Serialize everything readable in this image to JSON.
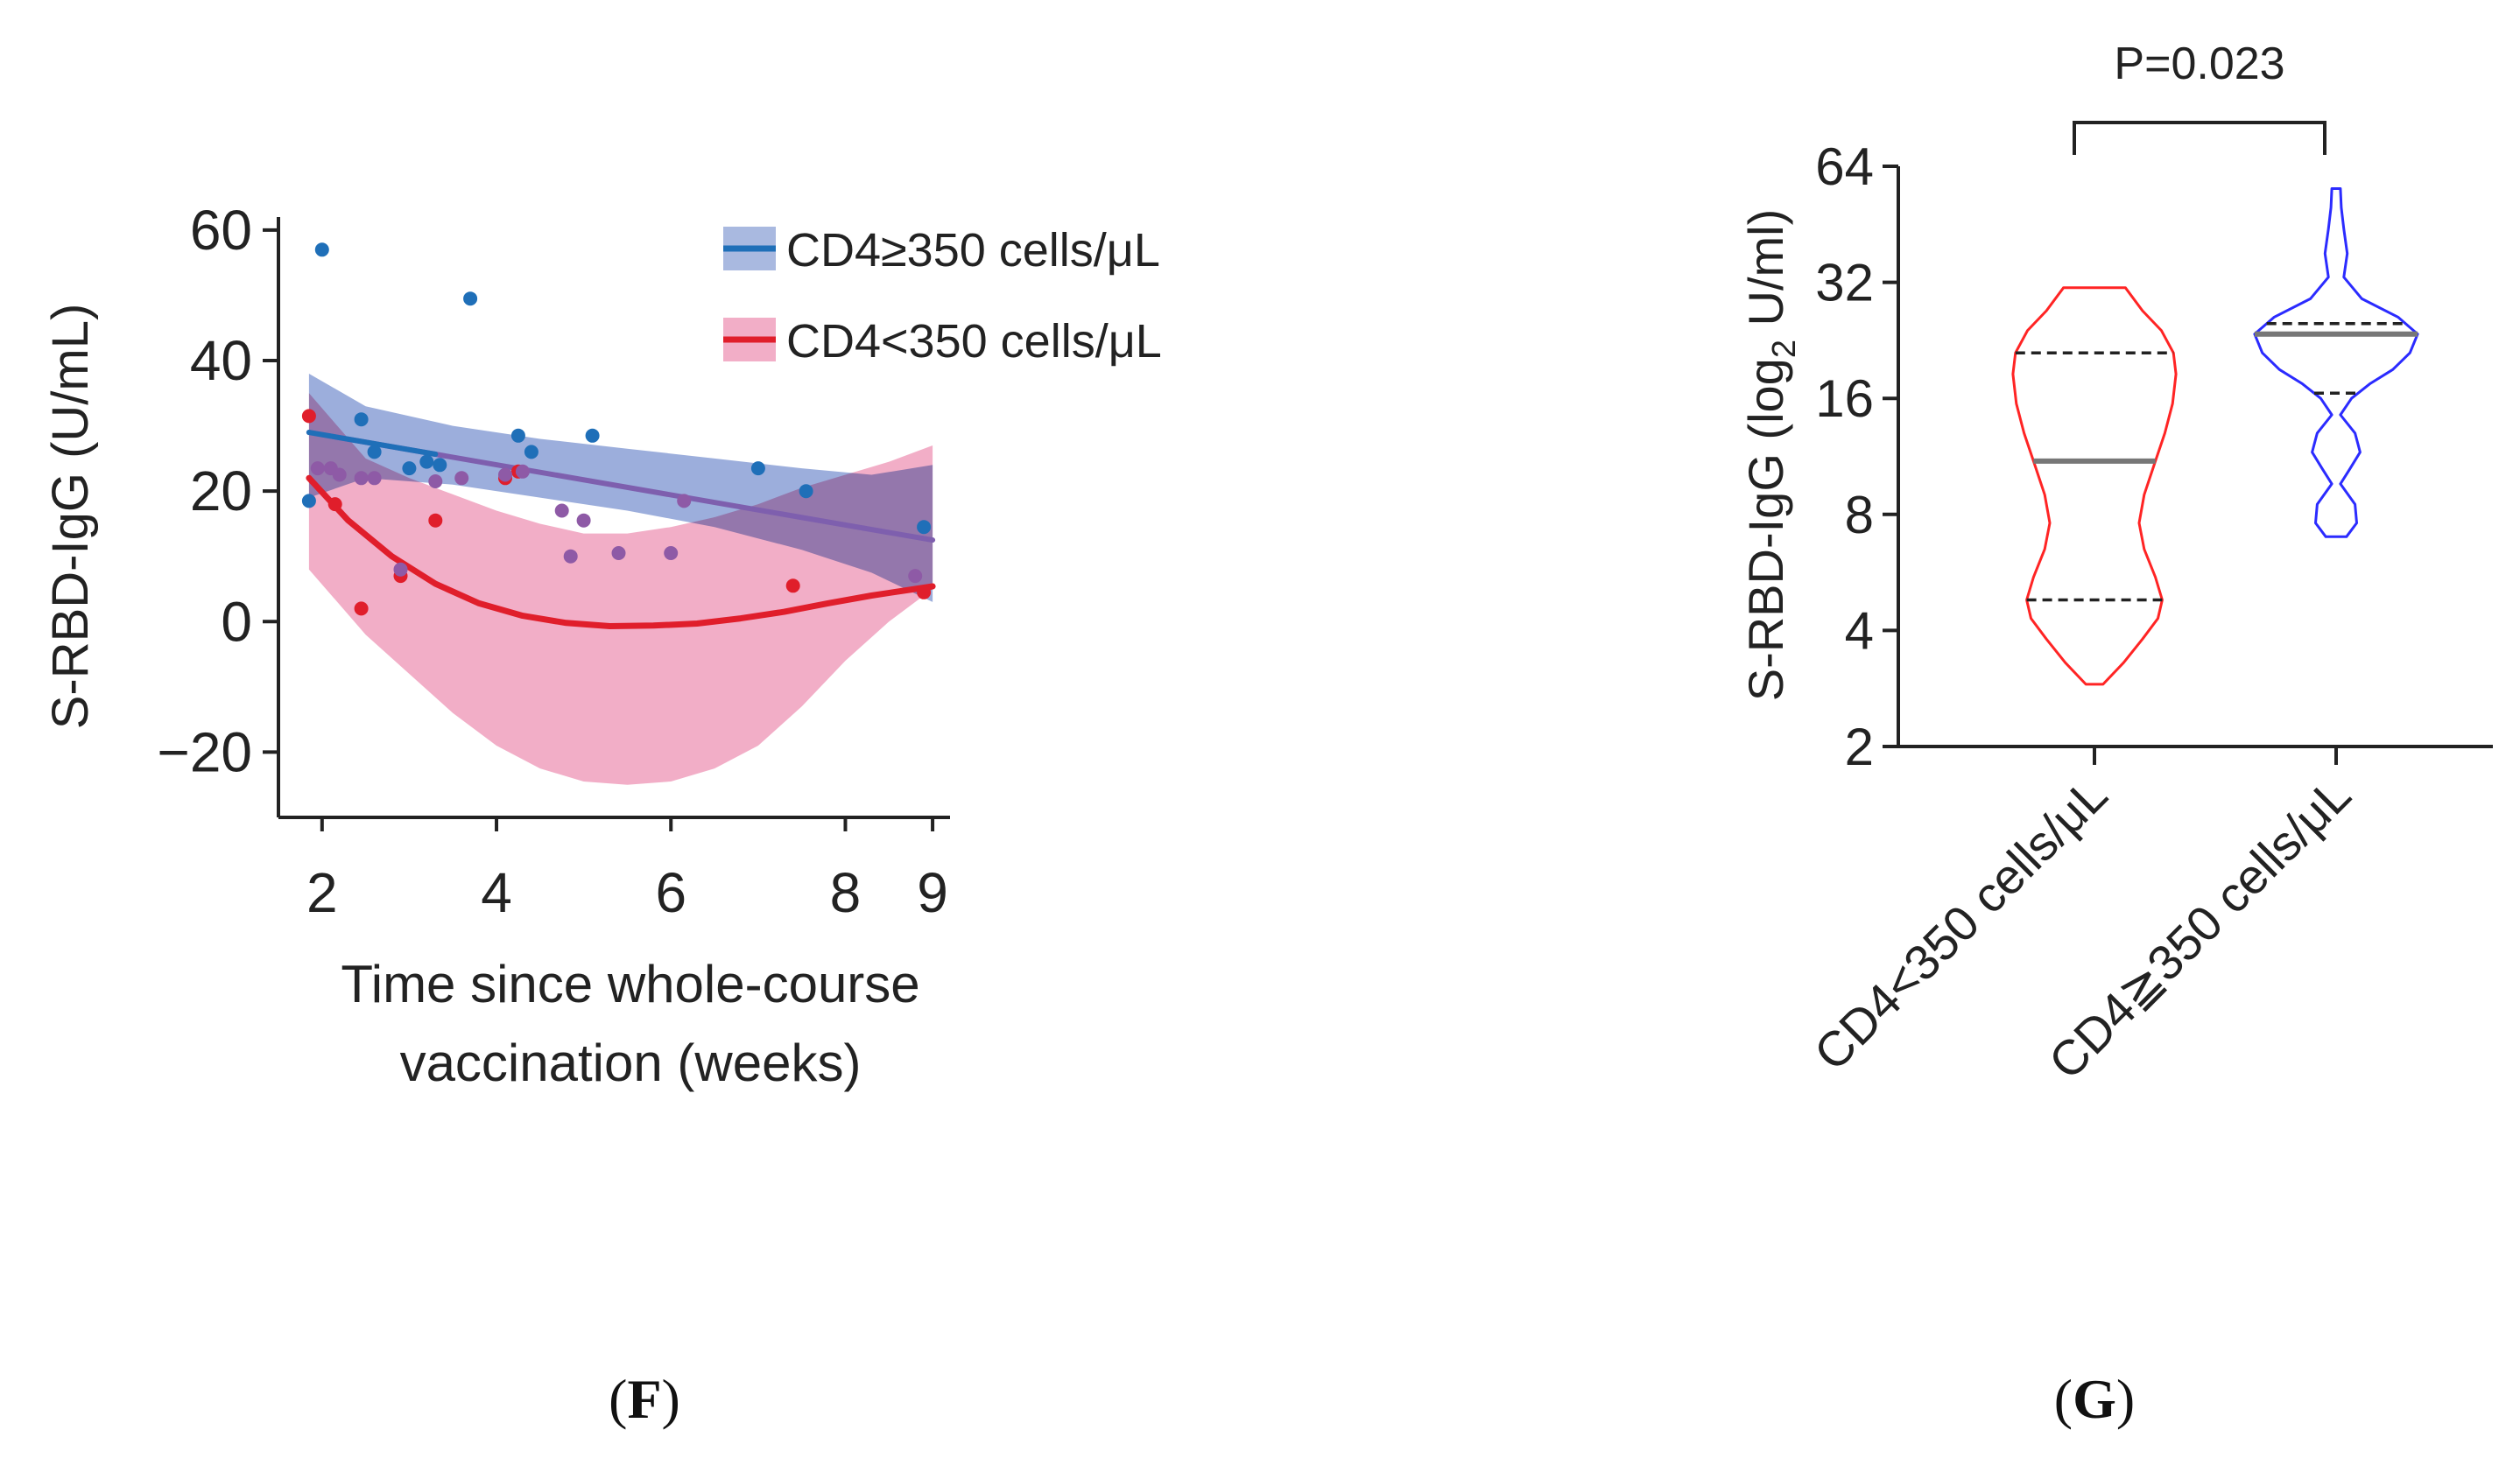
{
  "chart_data": [
    {
      "type": "scatter",
      "panel_label": "F",
      "xlabel_lines": [
        "Time since whole-course",
        "vaccination (weeks)"
      ],
      "ylabel": "S-RBD-IgG (U/mL)",
      "xlim": [
        1.5,
        9.2
      ],
      "ylim": [
        -30,
        62
      ],
      "xticks": [
        2,
        4,
        6,
        8,
        9
      ],
      "yticks": [
        60,
        40,
        20,
        0,
        -20
      ],
      "ytick_labels": [
        "60",
        "40",
        "20",
        "0",
        "−20"
      ],
      "legend_position": "top-right",
      "series": [
        {
          "name": "CD4≥350 cells/μL",
          "color": "#1f6fb8",
          "band_color": "#7b93d0",
          "fit": {
            "x": [
              1.85,
              9.0
            ],
            "y": [
              29,
              12.5
            ]
          },
          "band_upper": {
            "x": [
              1.85,
              2.5,
              3.5,
              4.5,
              5.5,
              6.5,
              7.5,
              8.3,
              9.0
            ],
            "y": [
              38,
              33,
              30,
              28,
              26.5,
              25,
              23.5,
              22.5,
              24
            ]
          },
          "band_lower": {
            "x": [
              1.85,
              2.5,
              3.5,
              4.5,
              5.5,
              6.5,
              7.5,
              8.3,
              9.0
            ],
            "y": [
              19,
              22,
              21,
              19,
              17,
              14.5,
              11,
              7.5,
              3
            ]
          },
          "points": {
            "x": [
              1.85,
              2.0,
              2.45,
              2.6,
              3.0,
              3.2,
              3.35,
              3.7,
              4.25,
              4.4,
              5.1,
              7.0,
              7.55,
              8.9
            ],
            "y": [
              18.5,
              57,
              31,
              26,
              23.5,
              24.5,
              24,
              49.5,
              28.5,
              26,
              28.5,
              23.5,
              20,
              14.5
            ]
          }
        },
        {
          "name": "CD4<350 cells/μL",
          "color": "#e01e2b",
          "band_color": "#ef9ab9",
          "fit": {
            "x": [
              1.85,
              2.3,
              2.8,
              3.3,
              3.8,
              4.3,
              4.8,
              5.3,
              5.8,
              6.3,
              6.8,
              7.3,
              7.8,
              8.3,
              8.8,
              9.0
            ],
            "y": [
              22,
              15.5,
              10,
              5.8,
              2.8,
              0.9,
              -0.2,
              -0.7,
              -0.6,
              -0.3,
              0.5,
              1.5,
              2.8,
              4.0,
              5.0,
              5.4
            ]
          },
          "band_upper": {
            "x": [
              1.85,
              2.5,
              3.0,
              3.5,
              4.0,
              4.5,
              5.0,
              5.5,
              6.0,
              6.5,
              7.0,
              7.5,
              8.0,
              8.5,
              9.0
            ],
            "y": [
              35,
              25,
              22,
              19.5,
              17,
              15,
              13.5,
              13.5,
              14.5,
              16,
              18,
              20.5,
              22.5,
              24.5,
              27
            ]
          },
          "band_lower": {
            "x": [
              1.85,
              2.5,
              3.0,
              3.5,
              4.0,
              4.5,
              5.0,
              5.5,
              6.0,
              6.5,
              7.0,
              7.5,
              8.0,
              8.5,
              9.0
            ],
            "y": [
              8,
              -2,
              -8,
              -14,
              -19,
              -22.5,
              -24.5,
              -25,
              -24.5,
              -22.5,
              -19,
              -13,
              -6,
              0,
              5
            ]
          },
          "points": {
            "x": [
              1.85,
              2.15,
              2.45,
              2.9,
              3.3,
              4.1,
              4.25,
              7.4,
              8.9
            ],
            "y": [
              31.5,
              18,
              2,
              7,
              15.5,
              22,
              23,
              5.5,
              4.5
            ]
          }
        },
        {
          "name": "overlap",
          "color": "#8e5aa6",
          "points": {
            "x": [
              1.95,
              2.1,
              2.2,
              2.45,
              2.6,
              2.9,
              3.3,
              3.6,
              4.1,
              4.3,
              4.75,
              4.85,
              5.0,
              5.4,
              6.0,
              6.15,
              8.8
            ],
            "y": [
              23.5,
              23.5,
              22.5,
              22,
              22,
              8,
              21.5,
              22,
              22.5,
              23,
              17,
              10,
              15.5,
              10.5,
              10.5,
              18.5,
              7
            ]
          }
        }
      ]
    },
    {
      "type": "violin",
      "panel_label": "G",
      "ylabel_main": "S-RBD-IgG (log",
      "ylabel_sub": "2",
      "ylabel_end": " U/ml)",
      "yscale": "log2",
      "ylim": [
        2,
        64
      ],
      "yticks": [
        64,
        32,
        16,
        8,
        4,
        2
      ],
      "ytick_labels": [
        "64",
        "32",
        "16",
        "8",
        "4",
        "2"
      ],
      "categories": [
        "CD4<350 cells/μL",
        "CD4≧350 cells/μL"
      ],
      "significance": {
        "label": "P=0.023",
        "between": [
          0,
          1
        ]
      },
      "series": [
        {
          "name": "CD4<350 cells/μL",
          "color": "#ff2424",
          "min": 2.9,
          "max": 31,
          "median": 11,
          "q1": 4.8,
          "q3": 21,
          "profile": {
            "y": [
              2.9,
              3.3,
              3.8,
              4.3,
              4.8,
              5.5,
              6.5,
              7.6,
              9.0,
              11.0,
              13.0,
              15.5,
              18.5,
              21.0,
              24.0,
              27.0,
              31.0
            ],
            "half_width": [
              0.1,
              0.34,
              0.56,
              0.74,
              0.79,
              0.71,
              0.58,
              0.52,
              0.58,
              0.71,
              0.82,
              0.91,
              0.95,
              0.92,
              0.78,
              0.56,
              0.36
            ]
          }
        },
        {
          "name": "CD4≧350 cells/μL",
          "color": "#2b2bff",
          "min": 7.0,
          "max": 56,
          "median": 23.5,
          "q1": 16.5,
          "q3": 25,
          "profile": {
            "y": [
              7.0,
              7.6,
              8.5,
              9.6,
              10.5,
              11.6,
              13.0,
              14.5,
              16.0,
              17.5,
              19.0,
              21.0,
              23.5,
              26.0,
              29.0,
              33.0,
              38.0,
              44.0,
              50.0,
              56.0
            ],
            "half_width": [
              0.12,
              0.24,
              0.22,
              0.05,
              0.16,
              0.28,
              0.22,
              0.05,
              0.18,
              0.4,
              0.66,
              0.86,
              0.95,
              0.72,
              0.3,
              0.09,
              0.13,
              0.09,
              0.06,
              0.05
            ]
          }
        }
      ]
    }
  ]
}
